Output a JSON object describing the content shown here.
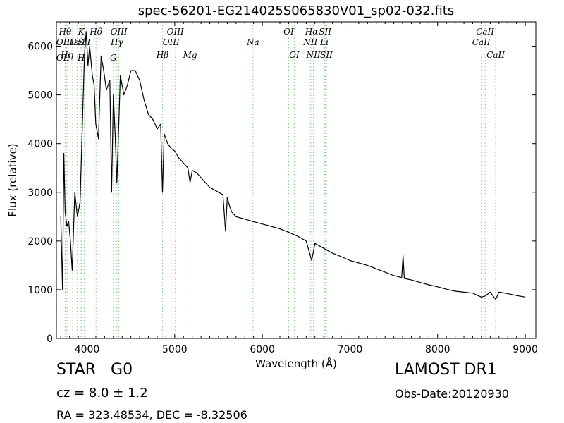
{
  "chart_data": {
    "type": "line",
    "title": "spec-56201-EG214025S065830V01_sp02-032.fits",
    "xlabel": "Wavelength (Å)",
    "ylabel": "Flux (relative)",
    "xlim": [
      3650,
      9120
    ],
    "ylim": [
      0,
      6500
    ],
    "xticks": [
      4000,
      5000,
      6000,
      7000,
      8000,
      9000
    ],
    "yticks": [
      0,
      1000,
      2000,
      3000,
      4000,
      5000,
      6000
    ],
    "grid": false,
    "legend": "none",
    "series": [
      {
        "x": [
          3700,
          3720,
          3735,
          3750,
          3770,
          3790,
          3810,
          3830,
          3860,
          3890,
          3920,
          3950,
          3970,
          3990,
          4010,
          4030,
          4060,
          4080,
          4100,
          4130,
          4160,
          4190,
          4220,
          4260,
          4280,
          4300,
          4320,
          4340,
          4380,
          4420,
          4460,
          4500,
          4550,
          4600,
          4650,
          4700,
          4750,
          4800,
          4840,
          4861,
          4880,
          4920,
          4960,
          5000,
          5050,
          5100,
          5150,
          5175,
          5200,
          5250,
          5300,
          5350,
          5400,
          5450,
          5500,
          5550,
          5580,
          5600,
          5620,
          5650,
          5700,
          5800,
          5893,
          6000,
          6100,
          6200,
          6300,
          6400,
          6500,
          6563,
          6600,
          6700,
          6800,
          6900,
          7000,
          7100,
          7200,
          7300,
          7400,
          7500,
          7590,
          7605,
          7620,
          7700,
          7800,
          7900,
          8000,
          8100,
          8200,
          8300,
          8400,
          8498,
          8542,
          8600,
          8662,
          8700,
          8800,
          8900,
          9000
        ],
        "y": [
          2500,
          1000,
          3800,
          2600,
          2300,
          2400,
          2000,
          1400,
          3000,
          2500,
          2800,
          4600,
          5800,
          6300,
          5600,
          6000,
          5400,
          5200,
          4400,
          4100,
          5800,
          5500,
          5100,
          5300,
          3000,
          5000,
          4200,
          3200,
          5400,
          5000,
          5200,
          5500,
          5500,
          5300,
          4900,
          4600,
          4500,
          4300,
          4400,
          3000,
          4200,
          4000,
          3900,
          3850,
          3700,
          3600,
          3500,
          3200,
          3450,
          3400,
          3300,
          3200,
          3100,
          3050,
          3000,
          2950,
          2200,
          2900,
          2750,
          2600,
          2500,
          2450,
          2400,
          2350,
          2300,
          2250,
          2180,
          2100,
          2000,
          1600,
          1950,
          1850,
          1750,
          1680,
          1600,
          1550,
          1500,
          1430,
          1360,
          1290,
          1250,
          1700,
          1230,
          1200,
          1150,
          1100,
          1060,
          1010,
          970,
          950,
          930,
          850,
          870,
          950,
          800,
          950,
          920,
          880,
          850
        ]
      }
    ],
    "line_labels": [
      {
        "x": 3727,
        "label": "OII",
        "row": 2
      },
      {
        "x": 3727,
        "label": "OII",
        "row": 4
      },
      {
        "x": 3750,
        "label": "Hθ",
        "row": 1
      },
      {
        "x": 3771,
        "label": "Hη",
        "row": 3
      },
      {
        "x": 3835,
        "label": "Hε",
        "row": 2
      },
      {
        "x": 3889,
        "label": "HeI",
        "row": 2
      },
      {
        "x": 3933,
        "label": "K",
        "row": 1
      },
      {
        "x": 3933,
        "label": "H",
        "row": 4
      },
      {
        "x": 3968,
        "label": "SII",
        "row": 2
      },
      {
        "x": 4102,
        "label": "Hδ",
        "row": 1
      },
      {
        "x": 4300,
        "label": "G",
        "row": 4
      },
      {
        "x": 4340,
        "label": "Hγ",
        "row": 2
      },
      {
        "x": 4363,
        "label": "OIII",
        "row": 1
      },
      {
        "x": 4861,
        "label": "Hβ",
        "row": 3
      },
      {
        "x": 4959,
        "label": "OIII",
        "row": 2
      },
      {
        "x": 5007,
        "label": "OIII",
        "row": 1
      },
      {
        "x": 5175,
        "label": "Mg",
        "row": 3
      },
      {
        "x": 5893,
        "label": "Na",
        "row": 2
      },
      {
        "x": 6300,
        "label": "OI",
        "row": 1
      },
      {
        "x": 6364,
        "label": "OI",
        "row": 3
      },
      {
        "x": 6548,
        "label": "NII",
        "row": 2
      },
      {
        "x": 6563,
        "label": "Hα",
        "row": 1
      },
      {
        "x": 6583,
        "label": "NII",
        "row": 3
      },
      {
        "x": 6707,
        "label": "Li",
        "row": 2
      },
      {
        "x": 6716,
        "label": "SII",
        "row": 1
      },
      {
        "x": 6731,
        "label": "SII",
        "row": 3
      },
      {
        "x": 8498,
        "label": "CaII",
        "row": 2
      },
      {
        "x": 8542,
        "label": "CaII",
        "row": 1
      },
      {
        "x": 8662,
        "label": "CaII",
        "row": 3
      }
    ]
  },
  "info": {
    "object_class": "STAR",
    "subclass": "G0",
    "cz": "cz = 8.0 ± 1.2",
    "radec": "RA = 323.48534, DEC = -8.32506",
    "survey": "LAMOST DR1",
    "obs_date": "Obs-Date:20120930"
  },
  "colors": {
    "spectrum": "#000000",
    "line_markers": "#7fc97f"
  }
}
